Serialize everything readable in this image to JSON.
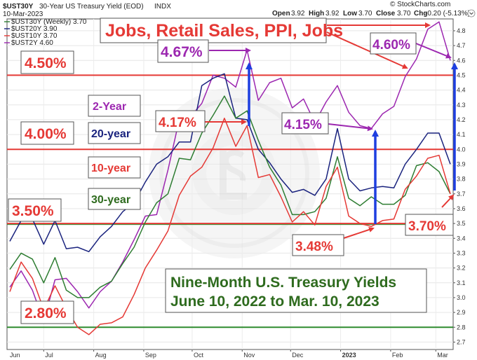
{
  "header": {
    "symbol": "$UST30Y",
    "description": "30-Year US Treasury Yield (EOD)",
    "index_tag": "INDX",
    "date": "10-Mar-2023",
    "open_label": "Open",
    "open": "3.92",
    "high_label": "High",
    "high": "3.92",
    "low_label": "Low",
    "low": "3.70",
    "close_label": "Close",
    "close": "3.70",
    "chg_label": "Chg",
    "chg": "-0.20 (-5.13%)",
    "watermark": "© StockCharts.com"
  },
  "legend_entries": [
    {
      "text": "$UST30Y (Weekly) 3.70",
      "color": "#2e7d32"
    },
    {
      "text": "$UST20Y 3.90",
      "color": "#1a237e"
    },
    {
      "text": "$UST10Y 3.70",
      "color": "#e53935"
    },
    {
      "text": "$UST2Y 4.60",
      "color": "#9c27b0"
    }
  ],
  "callouts": {
    "headline": "Jobs, Retail Sales, PPI, Jobs",
    "y450": "4.50%",
    "y400": "4.00%",
    "y350": "3.50%",
    "y280": "2.80%",
    "peak2y": "4.67%",
    "feb2y": "4.60%",
    "oct10y": "4.17%",
    "jan2y": "4.15%",
    "jan10y": "3.48%",
    "mar10y": "3.70%"
  },
  "series_labels": {
    "two_year": "2-Year",
    "twenty_year": "20-year",
    "ten_year": "10-year",
    "thirty_year": "30-year"
  },
  "title_box": {
    "line1": "Nine-Month U.S. Treasury Yields",
    "line2": "June 10, 2022 to Mar. 10, 2023"
  },
  "colors": {
    "thirty": "#2e7d32",
    "twenty": "#1a237e",
    "ten": "#e53935",
    "two": "#9c27b0",
    "hline_red": "#e53935",
    "hline_green": "#2e8b2e",
    "arrow_blue": "#1e3fe0",
    "callout_red": "#e53935",
    "title_green": "#2e6b1e"
  },
  "chart_data": {
    "type": "line",
    "title": "30-Year US Treasury Yield (EOD)",
    "x_tick_labels": [
      "Jun",
      "Jul",
      "Aug",
      "Sep",
      "Oct",
      "Nov",
      "Dec",
      "2023",
      "Feb",
      "Mar"
    ],
    "y_ticks": [
      2.7,
      2.8,
      2.9,
      3.0,
      3.1,
      3.2,
      3.3,
      3.4,
      3.5,
      3.6,
      3.7,
      3.8,
      3.9,
      4.0,
      4.1,
      4.2,
      4.3,
      4.4,
      4.5,
      4.6,
      4.7,
      4.8
    ],
    "ylim": [
      2.65,
      4.88
    ],
    "x": [
      "2022-06-10",
      "2022-06-17",
      "2022-06-24",
      "2022-07-01",
      "2022-07-08",
      "2022-07-15",
      "2022-07-22",
      "2022-07-29",
      "2022-08-05",
      "2022-08-12",
      "2022-08-19",
      "2022-08-26",
      "2022-09-02",
      "2022-09-09",
      "2022-09-16",
      "2022-09-23",
      "2022-09-30",
      "2022-10-07",
      "2022-10-14",
      "2022-10-21",
      "2022-10-28",
      "2022-11-04",
      "2022-11-11",
      "2022-11-18",
      "2022-11-25",
      "2022-12-02",
      "2022-12-09",
      "2022-12-16",
      "2022-12-23",
      "2022-12-30",
      "2023-01-06",
      "2023-01-13",
      "2023-01-20",
      "2023-01-27",
      "2023-02-03",
      "2023-02-10",
      "2023-02-17",
      "2023-02-24",
      "2023-03-03",
      "2023-03-10"
    ],
    "series": [
      {
        "name": "$UST30Y (Weekly) 3.70",
        "color": "#2e7d32",
        "values": [
          3.19,
          3.3,
          3.26,
          3.1,
          3.27,
          3.05,
          3.0,
          3.0,
          3.07,
          3.11,
          3.23,
          3.34,
          3.51,
          3.64,
          3.7,
          3.94,
          3.93,
          4.11,
          4.23,
          4.36,
          4.21,
          4.26,
          4.06,
          3.88,
          3.76,
          3.56,
          3.56,
          3.58,
          3.67,
          3.95,
          3.67,
          3.62,
          3.68,
          3.63,
          3.63,
          3.69,
          3.89,
          3.91,
          3.85,
          3.7
        ]
      },
      {
        "name": "$UST20Y 3.90",
        "color": "#1a237e",
        "values": [
          3.38,
          3.52,
          3.53,
          3.36,
          3.52,
          3.33,
          3.34,
          3.31,
          3.41,
          3.48,
          3.58,
          3.64,
          3.78,
          3.9,
          3.95,
          4.05,
          4.05,
          4.43,
          4.48,
          4.51,
          4.21,
          4.2,
          4.0,
          3.91,
          3.8,
          3.71,
          3.73,
          3.69,
          3.8,
          4.14,
          3.8,
          3.72,
          3.74,
          3.75,
          3.74,
          3.9,
          4.0,
          4.11,
          4.11,
          3.9
        ]
      },
      {
        "name": "$UST10Y 3.70",
        "color": "#e53935",
        "values": [
          3.04,
          3.24,
          3.13,
          2.92,
          3.08,
          2.93,
          2.8,
          2.75,
          2.82,
          2.83,
          2.87,
          3.02,
          3.2,
          3.32,
          3.45,
          3.69,
          3.82,
          3.88,
          4.01,
          4.21,
          4.02,
          4.16,
          3.81,
          3.83,
          3.68,
          3.51,
          3.58,
          3.49,
          3.75,
          3.88,
          3.55,
          3.5,
          3.48,
          3.52,
          3.53,
          3.73,
          3.82,
          3.94,
          3.96,
          3.7
        ]
      },
      {
        "name": "$UST2Y 4.60",
        "color": "#9c27b0",
        "values": [
          3.07,
          3.18,
          3.05,
          2.84,
          3.12,
          3.13,
          3.04,
          2.93,
          3.04,
          3.11,
          3.24,
          3.39,
          3.55,
          3.56,
          3.86,
          4.2,
          4.22,
          4.31,
          4.5,
          4.48,
          4.42,
          4.67,
          4.33,
          4.45,
          4.48,
          4.28,
          4.34,
          4.18,
          4.32,
          4.43,
          4.25,
          4.16,
          4.14,
          4.24,
          4.29,
          4.49,
          4.61,
          4.81,
          4.86,
          4.6
        ]
      }
    ]
  }
}
